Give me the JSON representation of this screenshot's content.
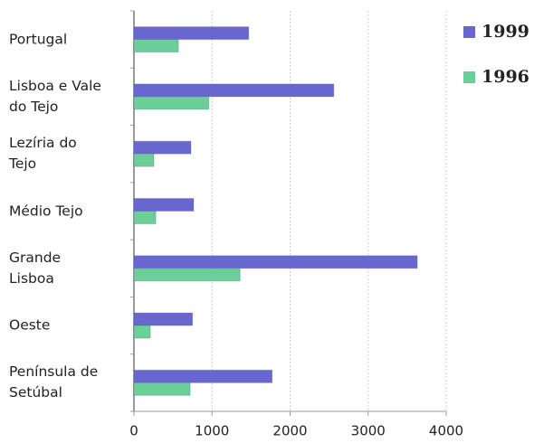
{
  "chart_data": {
    "type": "hbar",
    "categories": [
      "Portugal",
      "Lisboa e Vale\ndo Tejo",
      "Lezíria do\nTejo",
      "Médio Tejo",
      "Grande\nLisboa",
      "Oeste",
      "Península de\nSetúbal"
    ],
    "series": [
      {
        "name": "1999",
        "color": "#6767cf",
        "values": [
          1470,
          2560,
          730,
          765,
          3630,
          750,
          1770
        ]
      },
      {
        "name": "1996",
        "color": "#6ccf98",
        "values": [
          570,
          960,
          255,
          280,
          1360,
          210,
          720
        ]
      }
    ],
    "xlim": [
      0,
      4000
    ],
    "xticks": [
      0,
      1000,
      2000,
      3000,
      4000
    ],
    "grid": true,
    "legend": "top-right"
  }
}
